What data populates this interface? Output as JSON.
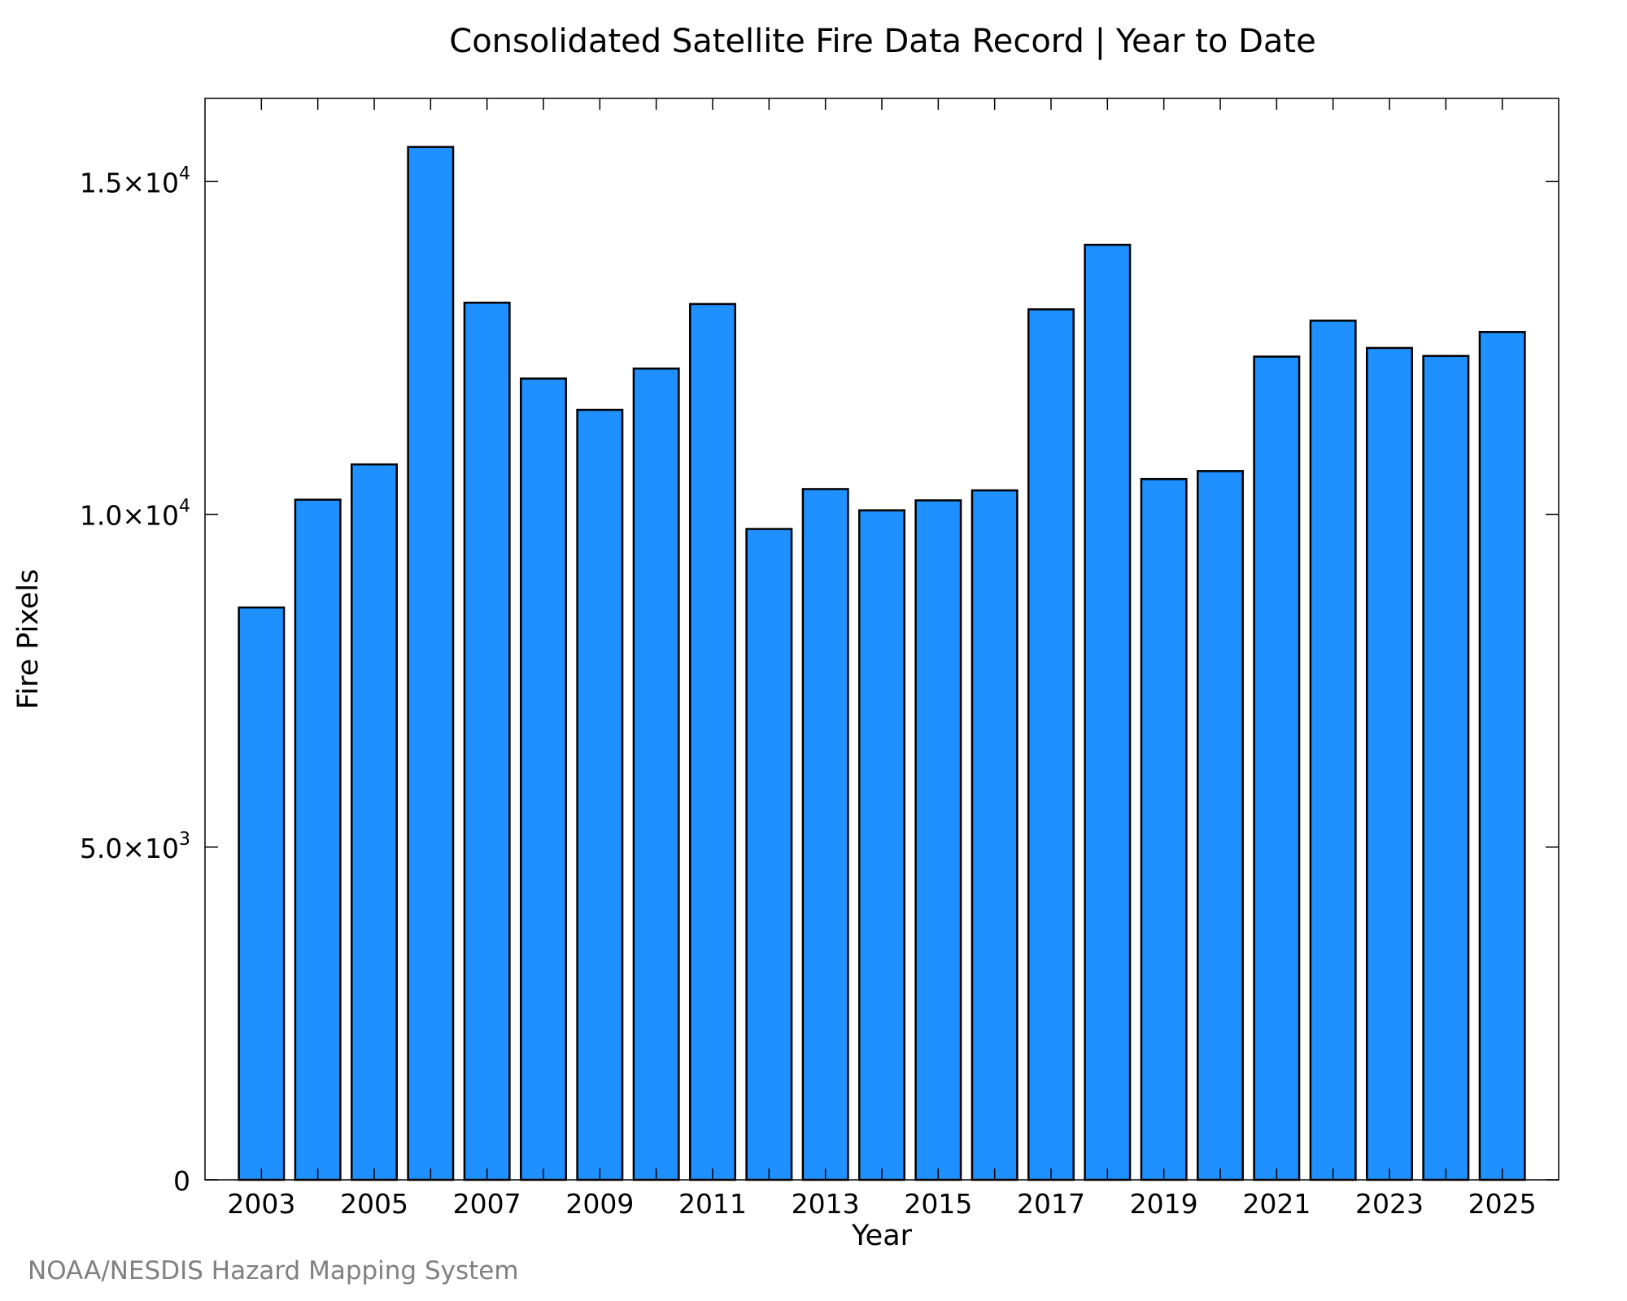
{
  "chart_data": {
    "type": "bar",
    "title": "Consolidated Satellite Fire Data Record | Year to Date",
    "xlabel": "Year",
    "ylabel": "Fire Pixels",
    "categories": [
      "2003",
      "2004",
      "2005",
      "2006",
      "2007",
      "2008",
      "2009",
      "2010",
      "2011",
      "2012",
      "2013",
      "2014",
      "2015",
      "2016",
      "2017",
      "2018",
      "2019",
      "2020",
      "2021",
      "2022",
      "2023",
      "2024",
      "2025"
    ],
    "values": [
      8600,
      10220,
      10750,
      15520,
      13180,
      12040,
      11570,
      12190,
      13160,
      9780,
      10380,
      10060,
      10210,
      10360,
      13080,
      14050,
      10530,
      10650,
      12370,
      12910,
      12500,
      12380,
      12740
    ],
    "ylim": [
      0,
      16250
    ],
    "xlim": [
      2002,
      2026
    ],
    "y_ticks": [
      {
        "value": 0,
        "label": "0",
        "exp": ""
      },
      {
        "value": 5000,
        "label": "5.0×10",
        "exp": "3"
      },
      {
        "value": 10000,
        "label": "1.0×10",
        "exp": "4"
      },
      {
        "value": 15000,
        "label": "1.5×10",
        "exp": "4"
      }
    ],
    "x_tick_labels": [
      "2003",
      "2005",
      "2007",
      "2009",
      "2011",
      "2013",
      "2015",
      "2017",
      "2019",
      "2021",
      "2023",
      "2025"
    ],
    "bar_color": "#1e90ff",
    "bar_edge_color": "#000000",
    "grid": false,
    "legend": "none"
  },
  "credit": "NOAA/NESDIS Hazard Mapping System"
}
